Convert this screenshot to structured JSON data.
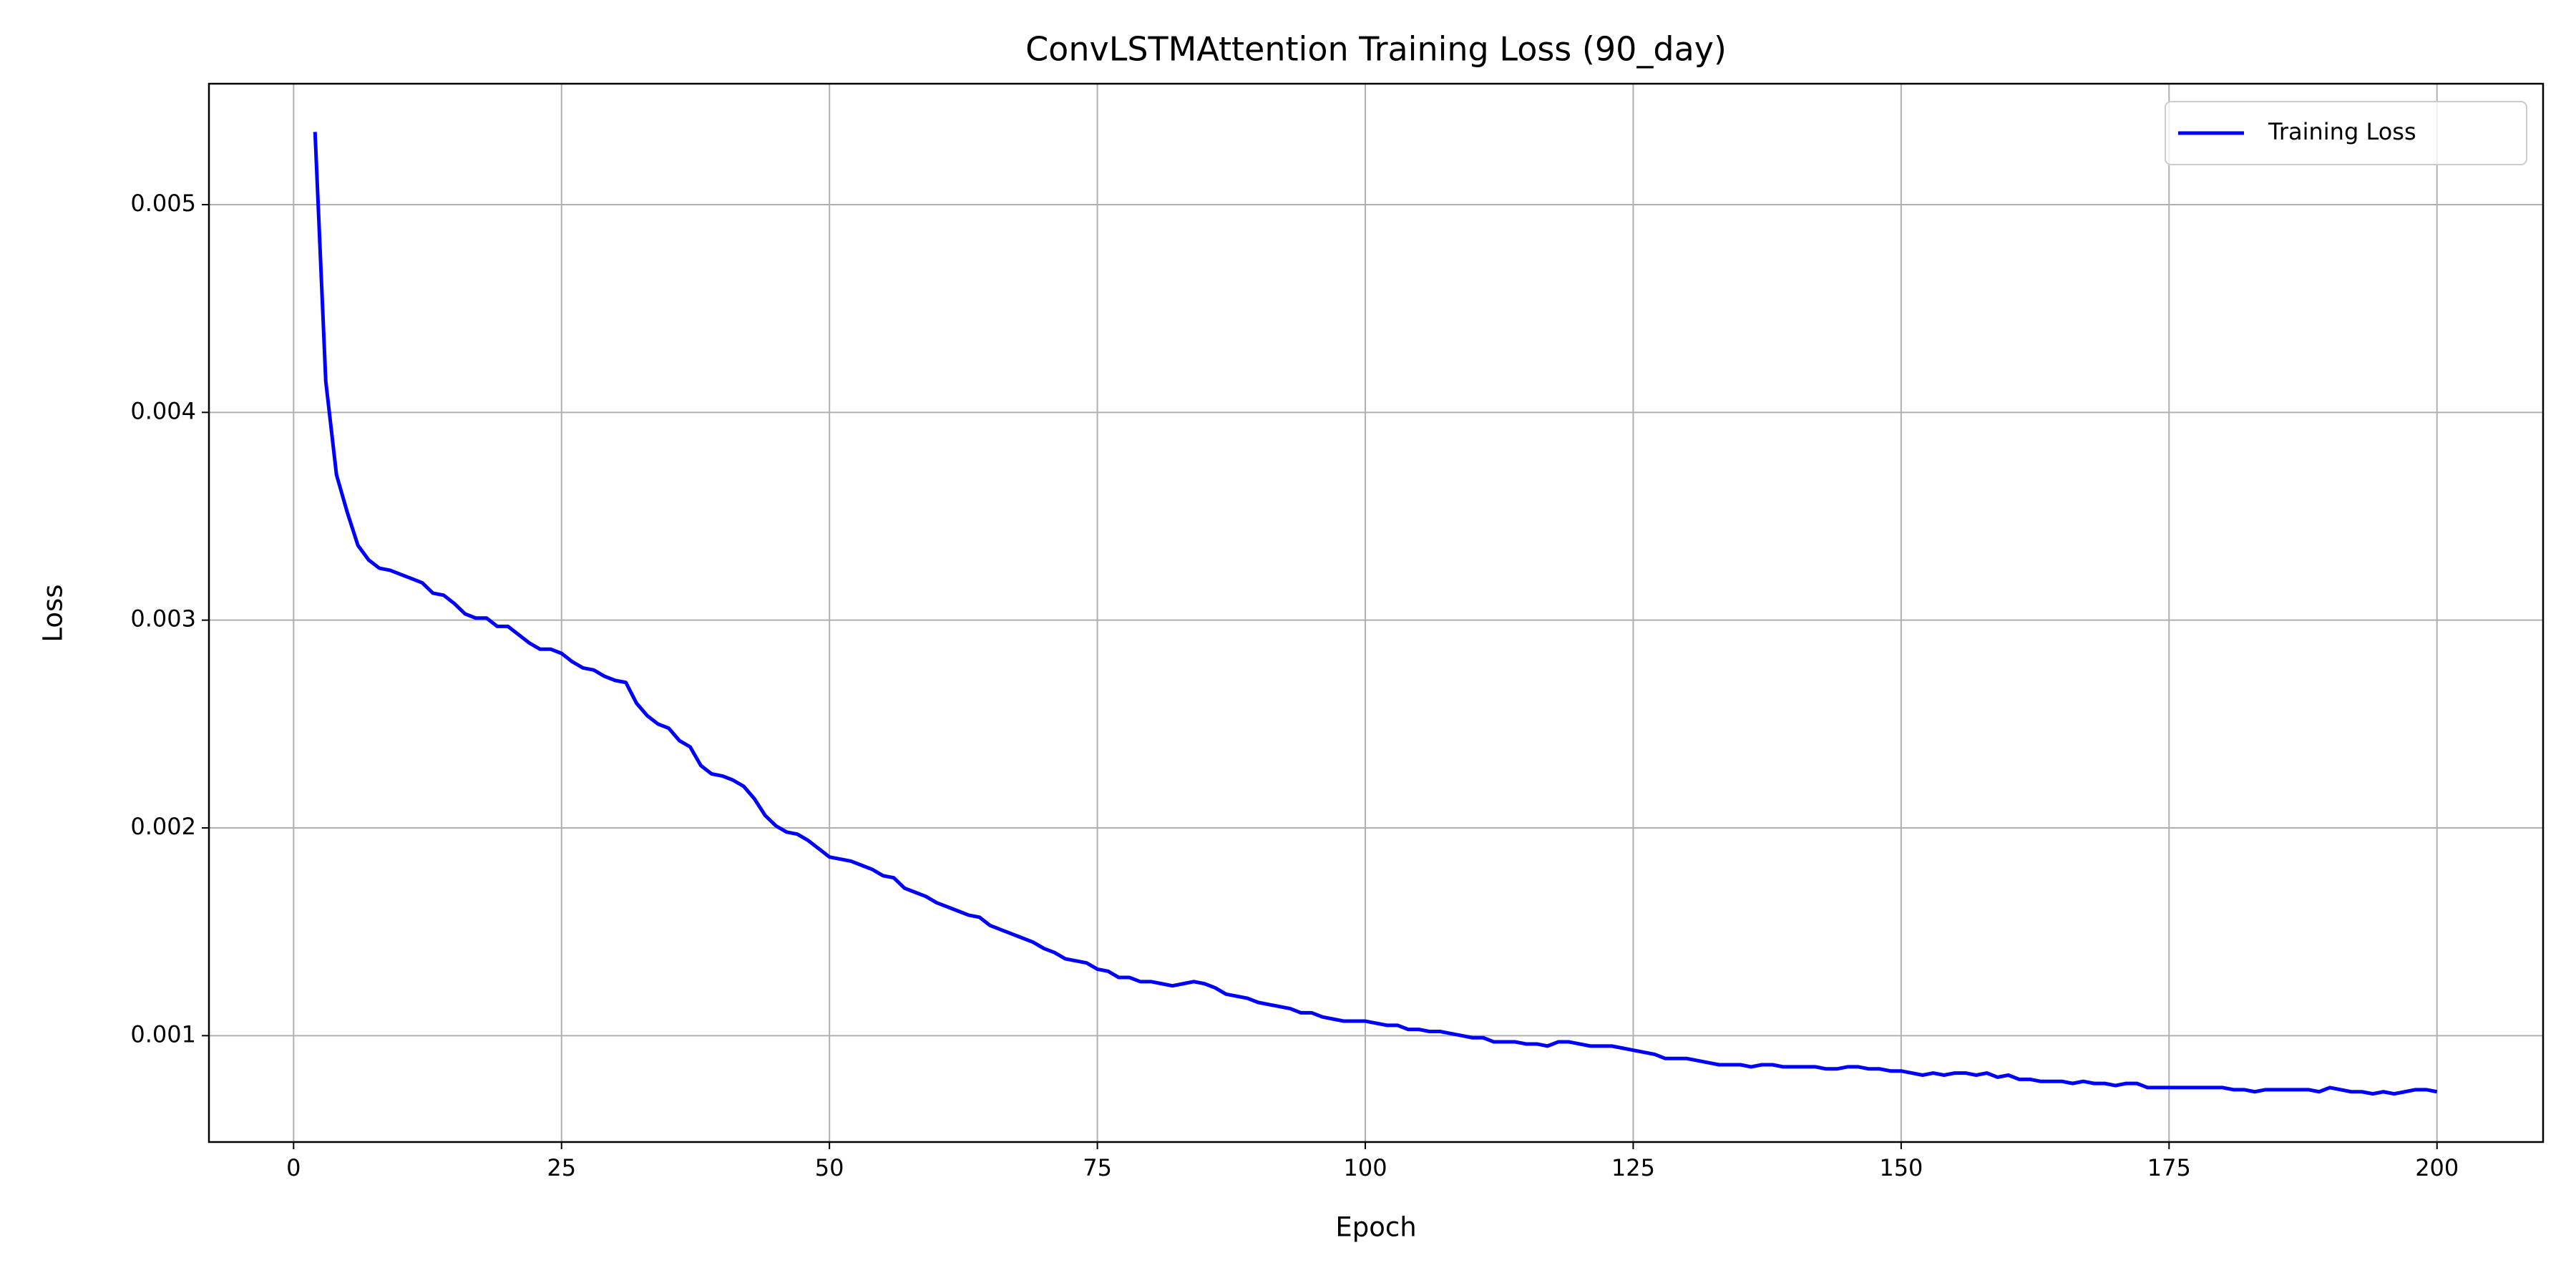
{
  "chart_data": {
    "type": "line",
    "title": "ConvLSTMAttention Training Loss (90_day)",
    "xlabel": "Epoch",
    "ylabel": "Loss",
    "x": [
      2,
      3,
      4,
      5,
      6,
      7,
      8,
      9,
      10,
      11,
      12,
      13,
      14,
      15,
      16,
      17,
      18,
      19,
      20,
      21,
      22,
      23,
      24,
      25,
      26,
      27,
      28,
      29,
      30,
      31,
      32,
      33,
      34,
      35,
      36,
      37,
      38,
      39,
      40,
      41,
      42,
      43,
      44,
      45,
      46,
      47,
      48,
      49,
      50,
      51,
      52,
      53,
      54,
      55,
      56,
      57,
      58,
      59,
      60,
      61,
      62,
      63,
      64,
      65,
      66,
      67,
      68,
      69,
      70,
      71,
      72,
      73,
      74,
      75,
      76,
      77,
      78,
      79,
      80,
      81,
      82,
      83,
      84,
      85,
      86,
      87,
      88,
      89,
      90,
      91,
      92,
      93,
      94,
      95,
      96,
      97,
      98,
      99,
      100,
      101,
      102,
      103,
      104,
      105,
      106,
      107,
      108,
      109,
      110,
      111,
      112,
      113,
      114,
      115,
      116,
      117,
      118,
      119,
      120,
      121,
      122,
      123,
      124,
      125,
      126,
      127,
      128,
      129,
      130,
      131,
      132,
      133,
      134,
      135,
      136,
      137,
      138,
      139,
      140,
      141,
      142,
      143,
      144,
      145,
      146,
      147,
      148,
      149,
      150,
      151,
      152,
      153,
      154,
      155,
      156,
      157,
      158,
      159,
      160,
      161,
      162,
      163,
      164,
      165,
      166,
      167,
      168,
      169,
      170,
      171,
      172,
      173,
      174,
      175,
      176,
      177,
      178,
      179,
      180,
      181,
      182,
      183,
      184,
      185,
      186,
      187,
      188,
      189,
      190,
      191,
      192,
      193,
      194,
      195,
      196,
      197,
      198,
      199,
      200
    ],
    "series": [
      {
        "name": "Training Loss",
        "color": "#0000ff",
        "values": [
          0.00535,
          0.00415,
          0.0037,
          0.00352,
          0.00336,
          0.00329,
          0.00325,
          0.00324,
          0.00322,
          0.0032,
          0.00318,
          0.00313,
          0.00312,
          0.00308,
          0.00303,
          0.00301,
          0.00301,
          0.00297,
          0.00297,
          0.00293,
          0.00289,
          0.00286,
          0.00286,
          0.00284,
          0.0028,
          0.00277,
          0.00276,
          0.00273,
          0.00271,
          0.0027,
          0.0026,
          0.00254,
          0.0025,
          0.00248,
          0.00242,
          0.00239,
          0.0023,
          0.00226,
          0.00225,
          0.00223,
          0.0022,
          0.00214,
          0.00206,
          0.00201,
          0.00198,
          0.00197,
          0.00194,
          0.0019,
          0.00186,
          0.00185,
          0.00184,
          0.00182,
          0.0018,
          0.00177,
          0.00176,
          0.00171,
          0.00169,
          0.00167,
          0.00164,
          0.00162,
          0.0016,
          0.00158,
          0.00157,
          0.00153,
          0.00151,
          0.00149,
          0.00147,
          0.00145,
          0.00142,
          0.0014,
          0.00137,
          0.00136,
          0.00135,
          0.00132,
          0.00131,
          0.00128,
          0.00128,
          0.00126,
          0.00126,
          0.00125,
          0.00124,
          0.00125,
          0.00126,
          0.00125,
          0.00123,
          0.0012,
          0.00119,
          0.00118,
          0.00116,
          0.00115,
          0.00114,
          0.00113,
          0.00111,
          0.00111,
          0.00109,
          0.00108,
          0.00107,
          0.00107,
          0.00107,
          0.00106,
          0.00105,
          0.00105,
          0.00103,
          0.00103,
          0.00102,
          0.00102,
          0.00101,
          0.001,
          0.00099,
          0.00099,
          0.00097,
          0.00097,
          0.00097,
          0.00096,
          0.00096,
          0.00095,
          0.00097,
          0.00097,
          0.00096,
          0.00095,
          0.00095,
          0.00095,
          0.00094,
          0.00093,
          0.00092,
          0.00091,
          0.00089,
          0.00089,
          0.00089,
          0.00088,
          0.00087,
          0.00086,
          0.00086,
          0.00086,
          0.00085,
          0.00086,
          0.00086,
          0.00085,
          0.00085,
          0.00085,
          0.00085,
          0.00084,
          0.00084,
          0.00085,
          0.00085,
          0.00084,
          0.00084,
          0.00083,
          0.00083,
          0.00082,
          0.00081,
          0.00082,
          0.00081,
          0.00082,
          0.00082,
          0.00081,
          0.00082,
          0.0008,
          0.00081,
          0.00079,
          0.00079,
          0.00078,
          0.00078,
          0.00078,
          0.00077,
          0.00078,
          0.00077,
          0.00077,
          0.00076,
          0.00077,
          0.00077,
          0.00075,
          0.00075,
          0.00075,
          0.00075,
          0.00075,
          0.00075,
          0.00075,
          0.00075,
          0.00074,
          0.00074,
          0.00073,
          0.00074,
          0.00074,
          0.00074,
          0.00074,
          0.00074,
          0.00073,
          0.00075,
          0.00074,
          0.00073,
          0.00073,
          0.00072,
          0.00073,
          0.00072,
          0.00073,
          0.00074,
          0.00074,
          0.00073
        ]
      }
    ],
    "xlim": [
      -7.9,
      209.9
    ],
    "ylim": [
      0.000488,
      0.005582
    ],
    "xticks": [
      0,
      25,
      50,
      75,
      100,
      125,
      150,
      175,
      200
    ],
    "yticks": [
      0.001,
      0.002,
      0.003,
      0.004,
      0.005
    ],
    "grid": true,
    "legend": "upper-right"
  }
}
